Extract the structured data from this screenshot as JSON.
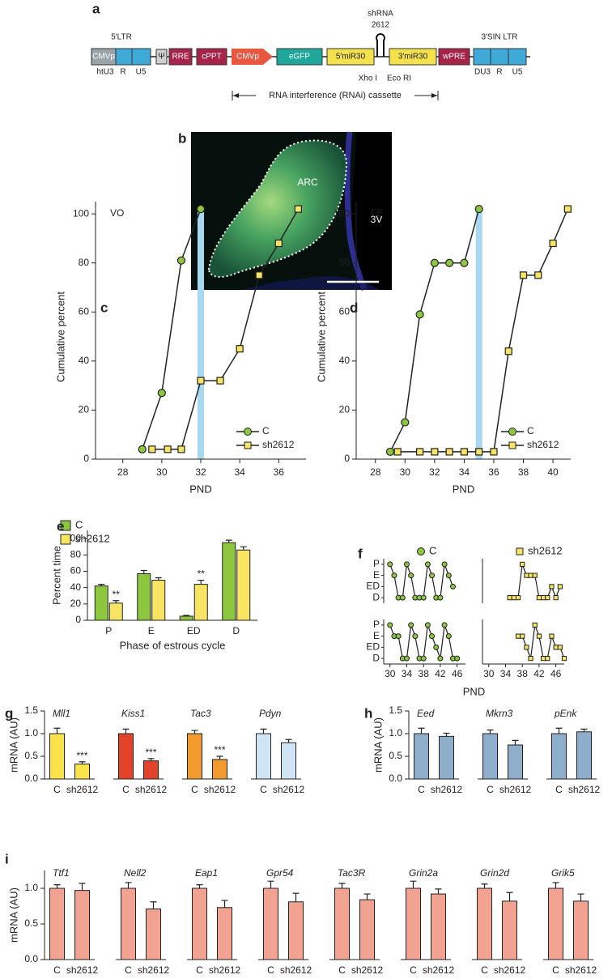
{
  "panel_a": {
    "label": "a",
    "ltr5": "5′LTR",
    "cmvp1": "CMVp",
    "psi": "Ψ",
    "rre": "RRE",
    "cppt": "cPPT",
    "cmvp2": "CMVp",
    "egfp": "eGFP",
    "mir5": "5′miR30",
    "shrna": "shRNA",
    "shrna_id": "2612",
    "mir3": "3′miR30",
    "wpre": "wPRE",
    "ltr3": "3′SIN LTR",
    "htu3": "htU3",
    "r1": "R",
    "u5_1": "U5",
    "xho": "Xho I",
    "eco": "Eco RI",
    "du3": "DU3",
    "r2": "R",
    "u5_2": "U5",
    "cassette": "RNA interference (RNAi) cassette"
  },
  "panel_b": {
    "label": "b",
    "region": "ARC",
    "ventricle": "3V"
  },
  "chart_data": [
    {
      "panel": "c",
      "type": "line",
      "label": "VO",
      "xlabel": "PND",
      "ylabel": "Cumulative percent",
      "xlim": [
        26.6,
        37.4
      ],
      "xticks": [
        28,
        30,
        32,
        34,
        36
      ],
      "ylim": [
        0,
        105
      ],
      "yticks": [
        0,
        20,
        40,
        60,
        80,
        100
      ],
      "highlight_x": 32,
      "highlight_color": "#a8d8ee",
      "legend": "lower right",
      "series": [
        {
          "name": "C",
          "color": "#8dc63f",
          "marker": "circle",
          "x": [
            29,
            30,
            31,
            32
          ],
          "values": [
            4,
            27,
            81,
            102
          ]
        },
        {
          "name": "sh2612",
          "color": "#f7e463",
          "marker": "square",
          "x": [
            29.5,
            30.3,
            31,
            32,
            33,
            34,
            35,
            36,
            37
          ],
          "values": [
            4,
            4,
            4,
            32,
            32,
            45,
            75,
            88,
            102
          ]
        }
      ]
    },
    {
      "panel": "d",
      "type": "line",
      "label": "FE",
      "xlabel": "PND",
      "ylabel": "Cumulative percent",
      "xlim": [
        26.7,
        41.2
      ],
      "xticks": [
        28,
        30,
        32,
        34,
        36,
        38,
        40
      ],
      "ylim": [
        0,
        105
      ],
      "yticks": [
        0,
        20,
        40,
        60,
        80,
        100
      ],
      "highlight_x": 35,
      "highlight_color": "#a8d8ee",
      "legend": "lower right",
      "series": [
        {
          "name": "C",
          "color": "#8dc63f",
          "marker": "circle",
          "x": [
            29,
            30,
            31,
            32,
            33,
            34,
            35
          ],
          "values": [
            3,
            15,
            59,
            80,
            80,
            80,
            102
          ]
        },
        {
          "name": "sh2612",
          "color": "#f7e463",
          "marker": "square",
          "x": [
            29.5,
            31,
            32,
            33,
            34,
            35,
            36,
            37,
            38,
            39,
            40,
            41
          ],
          "values": [
            3,
            3,
            3,
            3,
            3,
            3,
            3,
            44,
            75,
            75,
            88,
            102
          ]
        }
      ]
    },
    {
      "panel": "e",
      "type": "bar",
      "xlabel": "Phase of estrous cycle",
      "ylabel": "Percent time",
      "categories": [
        "P",
        "E",
        "ED",
        "D"
      ],
      "ylim": [
        0,
        110
      ],
      "yticks": [
        0,
        20,
        40,
        60,
        80,
        100
      ],
      "legend": "upper left",
      "series": [
        {
          "name": "C",
          "color": "#8dc63f",
          "values": [
            42,
            57,
            5,
            95
          ],
          "errors": [
            2,
            4,
            1,
            3
          ]
        },
        {
          "name": "sh2612",
          "color": "#f7e463",
          "values": [
            21,
            49,
            44,
            86
          ],
          "errors": [
            3,
            3,
            5,
            4
          ],
          "significance": [
            "**",
            null,
            "**",
            null
          ]
        }
      ]
    },
    {
      "panel": "f",
      "type": "line",
      "xlabel": "PND",
      "xlim": [
        28.5,
        48
      ],
      "xticks": [
        30,
        34,
        38,
        42,
        46
      ],
      "ylim": [
        -0.5,
        3.5
      ],
      "yticks": [
        {
          "value": 0,
          "label": "D"
        },
        {
          "value": 1,
          "label": "ED"
        },
        {
          "value": 2,
          "label": "E"
        },
        {
          "value": 3,
          "label": "P"
        }
      ],
      "series": [
        {
          "name": "C",
          "color": "#8dc63f",
          "marker": "circle",
          "traces": [
            {
              "x": [
                30,
                31,
                32,
                33,
                34,
                35,
                36,
                37,
                38,
                39,
                40,
                41,
                42,
                43,
                44,
                45
              ],
              "values": [
                3,
                2,
                0,
                0,
                3,
                2,
                0,
                0,
                0,
                3,
                2,
                0,
                0,
                3,
                2,
                1
              ]
            },
            {
              "x": [
                30,
                31,
                32,
                33,
                34,
                35,
                36,
                37,
                38,
                39,
                40,
                41,
                42,
                43,
                44,
                45,
                46
              ],
              "values": [
                3,
                2,
                2,
                0,
                0,
                3,
                2,
                0,
                0,
                3,
                2,
                1,
                0,
                3,
                2,
                0,
                0
              ]
            }
          ]
        },
        {
          "name": "sh2612",
          "color": "#f7e463",
          "marker": "square",
          "traces": [
            {
              "x": [
                35,
                36,
                37,
                38,
                39,
                40,
                41,
                42,
                43,
                44,
                45,
                46,
                47
              ],
              "values": [
                0,
                0,
                0,
                3,
                2,
                2,
                2,
                0,
                0,
                0,
                1,
                0,
                1
              ]
            },
            {
              "x": [
                37,
                38,
                39,
                40,
                41,
                42,
                43,
                44,
                45,
                46,
                47,
                48
              ],
              "values": [
                2,
                2,
                1,
                0,
                3,
                2,
                0,
                0,
                2,
                1,
                1,
                0
              ]
            }
          ]
        }
      ]
    },
    {
      "panel": "g",
      "type": "bar",
      "title": "Mll1",
      "ylabel": "mRNA (AU)",
      "categories": [
        "C",
        "sh2612"
      ],
      "values": [
        1.0,
        0.33
      ],
      "errors": [
        0.12,
        0.05
      ],
      "significance": [
        null,
        "***"
      ],
      "color": "#f9e24a",
      "ylim": [
        0,
        1.5
      ],
      "yticks": [
        {
          "value": 0,
          "label": "0.0"
        },
        0.5,
        {
          "value": 1,
          "label": "1.0"
        },
        1.5
      ]
    },
    {
      "type": "bar",
      "title": "Kiss1",
      "categories": [
        "C",
        "sh2612"
      ],
      "values": [
        1.0,
        0.4
      ],
      "errors": [
        0.1,
        0.05
      ],
      "significance": [
        null,
        "***"
      ],
      "color": "#e2432a",
      "ylim": [
        0,
        1.5
      ]
    },
    {
      "type": "bar",
      "title": "Tac3",
      "categories": [
        "C",
        "sh2612"
      ],
      "values": [
        1.0,
        0.43
      ],
      "errors": [
        0.07,
        0.07
      ],
      "significance": [
        null,
        "***"
      ],
      "color": "#f39a2e",
      "ylim": [
        0,
        1.5
      ]
    },
    {
      "type": "bar",
      "title": "Pdyn",
      "categories": [
        "C",
        "sh2612"
      ],
      "values": [
        1.0,
        0.8
      ],
      "errors": [
        0.1,
        0.07
      ],
      "color": "#cfe5f5",
      "ylim": [
        0,
        1.5
      ]
    },
    {
      "panel": "h",
      "type": "bar",
      "title": "Eed",
      "ylabel": "mRNA (AU)",
      "categories": [
        "C",
        "sh2612"
      ],
      "values": [
        1.0,
        0.94
      ],
      "errors": [
        0.12,
        0.07
      ],
      "color": "#8eaecb",
      "ylim": [
        0,
        1.5
      ],
      "yticks": [
        {
          "value": 0,
          "label": "0.0"
        },
        0.5,
        {
          "value": 1,
          "label": "1.0"
        },
        1.5
      ]
    },
    {
      "type": "bar",
      "title": "Mkrn3",
      "categories": [
        "C",
        "sh2612"
      ],
      "values": [
        1.0,
        0.75
      ],
      "errors": [
        0.08,
        0.1
      ],
      "color": "#8eaecb",
      "ylim": [
        0,
        1.5
      ]
    },
    {
      "type": "bar",
      "title": "pEnk",
      "categories": [
        "C",
        "sh2612"
      ],
      "values": [
        1.0,
        1.04
      ],
      "errors": [
        0.12,
        0.06
      ],
      "color": "#8eaecb",
      "ylim": [
        0,
        1.5
      ]
    },
    {
      "panel": "i",
      "type": "bar",
      "title": "Ttf1",
      "ylabel": "mRNA (AU)",
      "categories": [
        "C",
        "sh2612"
      ],
      "values": [
        1.0,
        0.97
      ],
      "errors": [
        0.05,
        0.1
      ],
      "color": "#f2a290",
      "ylim": [
        0,
        1.25
      ],
      "yticks": [
        {
          "value": 0,
          "label": "0.0"
        },
        0.5,
        {
          "value": 1,
          "label": "1.0"
        }
      ]
    },
    {
      "type": "bar",
      "title": "Nell2",
      "categories": [
        "C",
        "sh2612"
      ],
      "values": [
        1.0,
        0.71
      ],
      "errors": [
        0.08,
        0.1
      ],
      "color": "#f2a290",
      "ylim": [
        0,
        1.25
      ]
    },
    {
      "type": "bar",
      "title": "Eap1",
      "categories": [
        "C",
        "sh2612"
      ],
      "values": [
        1.0,
        0.73
      ],
      "errors": [
        0.05,
        0.1
      ],
      "color": "#f2a290",
      "ylim": [
        0,
        1.25
      ]
    },
    {
      "type": "bar",
      "title": "Gpr54",
      "categories": [
        "C",
        "sh2612"
      ],
      "values": [
        1.0,
        0.81
      ],
      "errors": [
        0.1,
        0.12
      ],
      "color": "#f2a290",
      "ylim": [
        0,
        1.25
      ]
    },
    {
      "type": "bar",
      "title": "Tac3R",
      "categories": [
        "C",
        "sh2612"
      ],
      "values": [
        1.0,
        0.84
      ],
      "errors": [
        0.07,
        0.08
      ],
      "color": "#f2a290",
      "ylim": [
        0,
        1.25
      ]
    },
    {
      "type": "bar",
      "title": "Grin2a",
      "categories": [
        "C",
        "sh2612"
      ],
      "values": [
        1.0,
        0.92
      ],
      "errors": [
        0.1,
        0.07
      ],
      "color": "#f2a290",
      "ylim": [
        0,
        1.25
      ]
    },
    {
      "type": "bar",
      "title": "Grin2d",
      "categories": [
        "C",
        "sh2612"
      ],
      "values": [
        1.0,
        0.82
      ],
      "errors": [
        0.06,
        0.12
      ],
      "color": "#f2a290",
      "ylim": [
        0,
        1.25
      ]
    },
    {
      "type": "bar",
      "title": "Grik5",
      "categories": [
        "C",
        "sh2612"
      ],
      "values": [
        1.0,
        0.82
      ],
      "errors": [
        0.08,
        0.1
      ],
      "color": "#f2a290",
      "ylim": [
        0,
        1.25
      ]
    }
  ]
}
